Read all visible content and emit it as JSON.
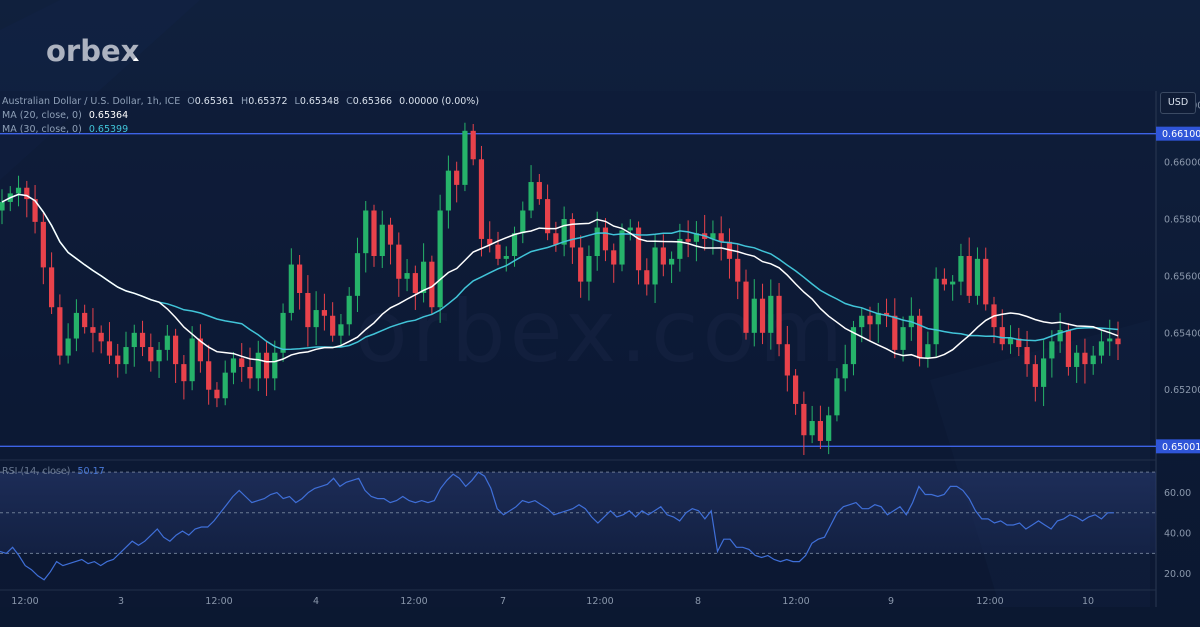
{
  "brand": {
    "logo_text": "orbex",
    "watermark_text": "orbex.com"
  },
  "legend": {
    "symbol_line": "Australian Dollar / U.S. Dollar, 1h, ICE",
    "o_label": "O",
    "o_value": "0.65361",
    "h_label": "H",
    "h_value": "0.65372",
    "l_label": "L",
    "l_value": "0.65348",
    "c_label": "C",
    "c_value": "0.65366",
    "change": "0.00000 (0.00%)",
    "ma20_label": "MA (20, close, 0)",
    "ma20_value": "0.65364",
    "ma30_label": "MA (30, close, 0)",
    "ma30_value": "0.65399",
    "rsi_label": "RSI (14, close)",
    "rsi_value": "50.17"
  },
  "currency_button": "USD",
  "colors": {
    "up": "#26b36a",
    "down": "#e8424b",
    "ma20": "#ffffff",
    "ma30": "#41c4d8",
    "level": "#3d63e6",
    "rsi": "#3f6fd8"
  },
  "chart_data": [
    {
      "type": "candlestick",
      "symbol": "AUD/USD",
      "timeframe": "1h",
      "ylim": [
        0.6496,
        0.6625
      ],
      "y_ticks": [
        "0.66200",
        "0.66000",
        "0.65800",
        "0.65600",
        "0.65400",
        "0.65200"
      ],
      "x_ticks": [
        "12:00",
        "3",
        "12:00",
        "4",
        "12:00",
        "7",
        "12:00",
        "8",
        "12:00",
        "9",
        "12:00",
        "10"
      ],
      "levels": [
        {
          "value": "0.66100"
        },
        {
          "value": "0.65001"
        }
      ],
      "closes": [
        0.6586,
        0.6589,
        0.6591,
        0.6587,
        0.6579,
        0.6563,
        0.6549,
        0.6532,
        0.6538,
        0.6547,
        0.6542,
        0.654,
        0.6537,
        0.6532,
        0.6529,
        0.6535,
        0.654,
        0.6535,
        0.653,
        0.6534,
        0.6539,
        0.6529,
        0.6523,
        0.6538,
        0.653,
        0.652,
        0.6517,
        0.6526,
        0.6531,
        0.6528,
        0.6524,
        0.6533,
        0.6524,
        0.6533,
        0.6547,
        0.6564,
        0.6554,
        0.6542,
        0.6548,
        0.6546,
        0.6539,
        0.6543,
        0.6553,
        0.6568,
        0.6583,
        0.6567,
        0.6578,
        0.6571,
        0.6559,
        0.6561,
        0.6554,
        0.6565,
        0.6549,
        0.6583,
        0.6597,
        0.6592,
        0.6611,
        0.6601,
        0.6573,
        0.6571,
        0.6566,
        0.6567,
        0.6575,
        0.6583,
        0.6593,
        0.6587,
        0.6575,
        0.6571,
        0.658,
        0.657,
        0.6558,
        0.6567,
        0.6577,
        0.6569,
        0.6564,
        0.6576,
        0.6577,
        0.6562,
        0.6557,
        0.657,
        0.6564,
        0.6566,
        0.6573,
        0.6572,
        0.6575,
        0.6573,
        0.6575,
        0.6572,
        0.6566,
        0.6558,
        0.654,
        0.6552,
        0.654,
        0.6553,
        0.6536,
        0.6525,
        0.6515,
        0.6504,
        0.6509,
        0.6502,
        0.6511,
        0.6524,
        0.6529,
        0.6542,
        0.6546,
        0.6543,
        0.6547,
        0.6546,
        0.6534,
        0.6542,
        0.6546,
        0.6531,
        0.6536,
        0.6559,
        0.6557,
        0.6558,
        0.6567,
        0.6553,
        0.6566,
        0.655,
        0.6542,
        0.6536,
        0.6538,
        0.6535,
        0.6529,
        0.6521,
        0.6531,
        0.6537,
        0.6541,
        0.6528,
        0.6533,
        0.6529,
        0.6532,
        0.6537,
        0.6538,
        0.6536
      ]
    },
    {
      "type": "line",
      "name": "RSI (14, close)",
      "ylim": [
        12,
        75
      ],
      "y_ticks": [
        "60.00",
        "40.00",
        "20.00"
      ],
      "bands": [
        70,
        50,
        30
      ],
      "values": [
        31,
        30,
        33,
        29,
        24,
        22,
        19,
        17,
        21,
        26,
        24,
        25,
        26,
        27,
        25,
        26,
        24,
        26,
        27,
        30,
        33,
        36,
        34,
        36,
        39,
        42,
        38,
        36,
        39,
        41,
        39,
        42,
        43,
        43,
        46,
        50,
        54,
        58,
        61,
        58,
        55,
        56,
        57,
        59,
        60,
        57,
        58,
        55,
        57,
        60,
        62,
        63,
        64,
        67,
        63,
        65,
        66,
        67,
        61,
        58,
        57,
        57,
        55,
        56,
        58,
        56,
        55,
        56,
        55,
        56,
        62,
        66,
        69,
        67,
        63,
        66,
        70,
        68,
        62,
        52,
        49,
        51,
        53,
        56,
        55,
        56,
        54,
        52,
        49,
        50,
        51,
        52,
        54,
        52,
        48,
        45,
        48,
        51,
        48,
        49,
        51,
        48,
        51,
        49,
        51,
        53,
        49,
        48,
        46,
        50,
        52,
        51,
        47,
        51,
        31,
        37,
        37,
        33,
        33,
        32,
        29,
        28,
        29,
        27,
        26,
        27,
        26,
        26,
        29,
        35,
        37,
        38,
        44,
        50,
        53,
        54,
        55,
        52,
        52,
        54,
        53,
        49,
        51,
        53,
        49,
        55,
        63,
        59,
        59,
        58,
        59,
        63,
        63,
        61,
        57,
        51,
        47,
        47,
        45,
        46,
        44,
        44,
        45,
        42,
        44,
        46,
        44,
        42,
        46,
        47,
        49,
        48,
        46,
        48,
        49,
        47,
        50,
        50
      ]
    }
  ]
}
